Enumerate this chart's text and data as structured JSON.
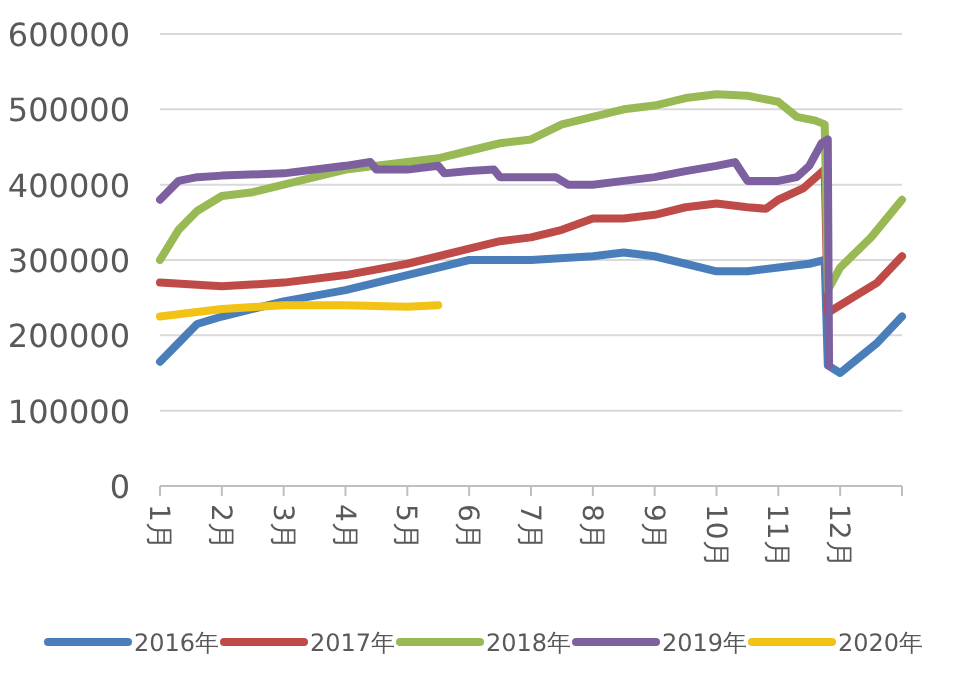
{
  "chart_data": {
    "type": "line",
    "xlim": [
      1,
      13
    ],
    "ylim": [
      0,
      600000
    ],
    "xticks": [
      {
        "value": 1,
        "label": "1月"
      },
      {
        "value": 2,
        "label": "2月"
      },
      {
        "value": 3,
        "label": "3月"
      },
      {
        "value": 4,
        "label": "4月"
      },
      {
        "value": 5,
        "label": "5月"
      },
      {
        "value": 6,
        "label": "6月"
      },
      {
        "value": 7,
        "label": "7月"
      },
      {
        "value": 8,
        "label": "8月"
      },
      {
        "value": 9,
        "label": "9月"
      },
      {
        "value": 10,
        "label": "10月"
      },
      {
        "value": 11,
        "label": "11月"
      },
      {
        "value": 12,
        "label": "12月"
      },
      {
        "value": 13,
        "label": null
      }
    ],
    "yticks": [
      0,
      100000,
      200000,
      300000,
      400000,
      500000,
      600000
    ],
    "grid": "y",
    "legend": "bottom",
    "marker": "none",
    "line_style": "solid",
    "series": [
      {
        "name": "2016年",
        "color": "#4a7ebb",
        "x": [
          1,
          1.3,
          1.6,
          2,
          2.5,
          3,
          4,
          5,
          5.5,
          6,
          7,
          8,
          8.5,
          9,
          9.5,
          10,
          10.5,
          11,
          11.5,
          11.75,
          11.8,
          12,
          12.3,
          12.6,
          13
        ],
        "values": [
          165000,
          190000,
          215000,
          225000,
          235000,
          245000,
          260000,
          280000,
          290000,
          300000,
          300000,
          305000,
          310000,
          305000,
          295000,
          285000,
          285000,
          290000,
          295000,
          300000,
          160000,
          150000,
          170000,
          190000,
          225000
        ]
      },
      {
        "name": "2017年",
        "color": "#be4b48",
        "x": [
          1,
          2,
          3,
          4,
          5,
          6,
          6.5,
          7,
          7.5,
          8,
          8.5,
          9,
          9.5,
          10,
          10.5,
          10.8,
          11,
          11.4,
          11.75,
          11.8,
          12.2,
          12.6,
          13
        ],
        "values": [
          270000,
          265000,
          270000,
          280000,
          295000,
          315000,
          325000,
          330000,
          340000,
          355000,
          355000,
          360000,
          370000,
          375000,
          370000,
          368000,
          380000,
          395000,
          420000,
          230000,
          250000,
          270000,
          305000
        ]
      },
      {
        "name": "2018年",
        "color": "#98b954",
        "x": [
          1,
          1.3,
          1.6,
          2,
          2.5,
          3,
          3.5,
          4,
          4.5,
          5,
          5.5,
          6,
          6.5,
          7,
          7.5,
          8,
          8.5,
          9,
          9.5,
          10,
          10.5,
          11,
          11.3,
          11.6,
          11.75,
          11.8,
          12,
          12.5,
          13
        ],
        "values": [
          300000,
          340000,
          365000,
          385000,
          390000,
          400000,
          410000,
          420000,
          425000,
          430000,
          435000,
          445000,
          455000,
          460000,
          480000,
          490000,
          500000,
          505000,
          515000,
          520000,
          518000,
          510000,
          490000,
          485000,
          480000,
          260000,
          290000,
          330000,
          380000
        ]
      },
      {
        "name": "2019年",
        "color": "#7d60a0",
        "x": [
          1,
          1.3,
          1.6,
          2,
          3,
          4,
          4.4,
          4.5,
          5,
          5.5,
          5.6,
          6,
          6.4,
          6.5,
          7,
          7.4,
          7.6,
          8,
          8.5,
          9,
          9.5,
          10,
          10.3,
          10.5,
          11,
          11.3,
          11.5,
          11.7,
          11.8,
          11.82
        ],
        "values": [
          380000,
          405000,
          410000,
          412000,
          415000,
          425000,
          430000,
          420000,
          420000,
          425000,
          415000,
          418000,
          420000,
          410000,
          410000,
          410000,
          400000,
          400000,
          405000,
          410000,
          418000,
          425000,
          430000,
          405000,
          405000,
          410000,
          425000,
          455000,
          460000,
          160000
        ]
      },
      {
        "name": "2020年",
        "color": "#f2c314",
        "x": [
          1,
          1.5,
          2,
          3,
          4,
          5,
          5.5
        ],
        "values": [
          225000,
          230000,
          235000,
          240000,
          240000,
          238000,
          240000
        ]
      }
    ]
  }
}
